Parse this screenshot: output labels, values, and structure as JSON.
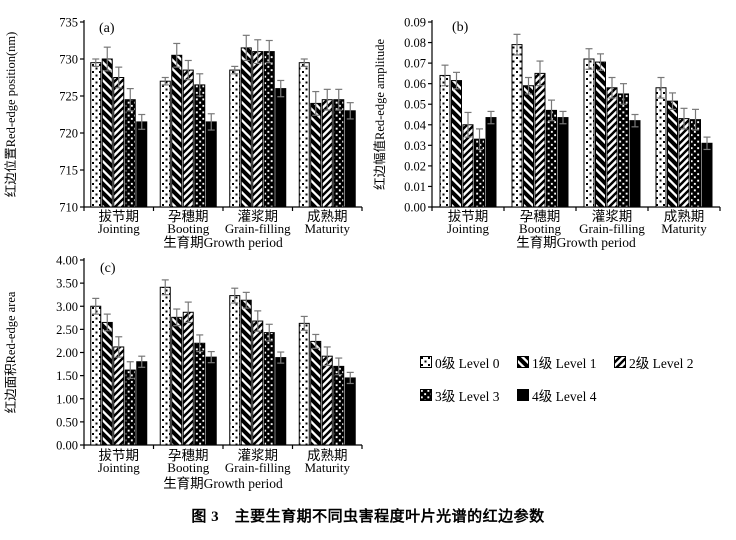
{
  "figure": {
    "caption": "图 3　主要生育期不同虫害程度叶片光谱的红边参数"
  },
  "x_axis": {
    "label": "生育期Growth period",
    "categories": [
      {
        "cn": "拔节期",
        "en": "Jointing"
      },
      {
        "cn": "孕穗期",
        "en": "Booting"
      },
      {
        "cn": "灌浆期",
        "en": "Grain-filling"
      },
      {
        "cn": "成熟期",
        "en": "Maturity"
      }
    ]
  },
  "legend": {
    "items": [
      {
        "label": "0级 Level 0",
        "pattern": "white-with-black-dots"
      },
      {
        "label": "1级 Level 1",
        "pattern": "thick-backslash-stripes"
      },
      {
        "label": "2级 Level 2",
        "pattern": "thin-slash-stripes"
      },
      {
        "label": "3级 Level 3",
        "pattern": "black-with-white-dots"
      },
      {
        "label": "4级 Level 4",
        "pattern": "solid-black"
      }
    ]
  },
  "colors": {
    "bar_outline": "#000000",
    "error_bar": "#787878",
    "background": "#ffffff"
  },
  "chart_data": [
    {
      "type": "bar",
      "panel": "(a)",
      "ylabel": "红边位置Red-edge position(nm)",
      "xlabel": "生育期Growth period",
      "ylim": [
        710,
        735
      ],
      "ytick_step": 5,
      "ytick_decimals": 0,
      "grid": false,
      "legend_position": "shared-bottom-right",
      "categories": [
        "拔节期 Jointing",
        "孕穗期 Booting",
        "灌浆期 Grain-filling",
        "成熟期 Maturity"
      ],
      "series": [
        {
          "name": "0级 Level 0",
          "values": [
            729.5,
            727.0,
            728.5,
            729.5
          ],
          "errors": [
            0.5,
            0.5,
            0.5,
            0.5
          ]
        },
        {
          "name": "1级 Level 1",
          "values": [
            730.0,
            730.5,
            731.5,
            724.0
          ],
          "errors": [
            1.6,
            1.6,
            1.7,
            1.6
          ]
        },
        {
          "name": "2级 Level 2",
          "values": [
            727.5,
            728.5,
            731.0,
            724.5
          ],
          "errors": [
            1.4,
            1.3,
            1.6,
            1.4
          ]
        },
        {
          "name": "3级 Level 3",
          "values": [
            724.5,
            726.5,
            731.0,
            724.5
          ],
          "errors": [
            1.5,
            1.5,
            1.5,
            1.4
          ]
        },
        {
          "name": "4级 Level 4",
          "values": [
            721.5,
            721.5,
            726.0,
            723.0
          ],
          "errors": [
            1.0,
            1.1,
            1.1,
            1.1
          ]
        }
      ]
    },
    {
      "type": "bar",
      "panel": "(b)",
      "ylabel": "红边幅值Red-edge amplitude",
      "xlabel": "生育期Growth period",
      "ylim": [
        0,
        0.09
      ],
      "ytick_step": 0.01,
      "ytick_decimals": 2,
      "grid": false,
      "legend_position": "shared-bottom-right",
      "categories": [
        "拔节期 Jointing",
        "孕穗期 Booting",
        "灌浆期 Grain-filling",
        "成熟期 Maturity"
      ],
      "series": [
        {
          "name": "0级 Level 0",
          "values": [
            0.064,
            0.079,
            0.072,
            0.058
          ],
          "errors": [
            0.005,
            0.005,
            0.005,
            0.005
          ]
        },
        {
          "name": "1级 Level 1",
          "values": [
            0.0615,
            0.059,
            0.0705,
            0.0515
          ],
          "errors": [
            0.004,
            0.004,
            0.004,
            0.004
          ]
        },
        {
          "name": "2级 Level 2",
          "values": [
            0.04,
            0.065,
            0.058,
            0.043
          ],
          "errors": [
            0.006,
            0.006,
            0.005,
            0.005
          ]
        },
        {
          "name": "3级 Level 3",
          "values": [
            0.033,
            0.047,
            0.055,
            0.0425
          ],
          "errors": [
            0.005,
            0.005,
            0.005,
            0.005
          ]
        },
        {
          "name": "4级 Level 4",
          "values": [
            0.0435,
            0.0435,
            0.042,
            0.031
          ],
          "errors": [
            0.003,
            0.003,
            0.003,
            0.003
          ]
        }
      ]
    },
    {
      "type": "bar",
      "panel": "(c)",
      "ylabel": "红边面积Red-edge area",
      "xlabel": "生育期Growth period",
      "ylim": [
        0,
        4.0
      ],
      "ytick_step": 0.5,
      "ytick_decimals": 2,
      "grid": false,
      "legend_position": "shared-bottom-right",
      "categories": [
        "拔节期 Jointing",
        "孕穗期 Booting",
        "灌浆期 Grain-filling",
        "成熟期 Maturity"
      ],
      "series": [
        {
          "name": "0级 Level 0",
          "values": [
            3.0,
            3.41,
            3.23,
            2.63
          ],
          "errors": [
            0.17,
            0.16,
            0.16,
            0.15
          ]
        },
        {
          "name": "1级 Level 1",
          "values": [
            2.65,
            2.76,
            3.13,
            2.24
          ],
          "errors": [
            0.18,
            0.18,
            0.17,
            0.15
          ]
        },
        {
          "name": "2级 Level 2",
          "values": [
            2.12,
            2.87,
            2.68,
            1.92
          ],
          "errors": [
            0.22,
            0.22,
            0.22,
            0.2
          ]
        },
        {
          "name": "3级 Level 3",
          "values": [
            1.62,
            2.2,
            2.43,
            1.7
          ],
          "errors": [
            0.18,
            0.18,
            0.18,
            0.18
          ]
        },
        {
          "name": "4级 Level 4",
          "values": [
            1.8,
            1.9,
            1.89,
            1.45
          ],
          "errors": [
            0.12,
            0.12,
            0.12,
            0.12
          ]
        }
      ]
    }
  ]
}
